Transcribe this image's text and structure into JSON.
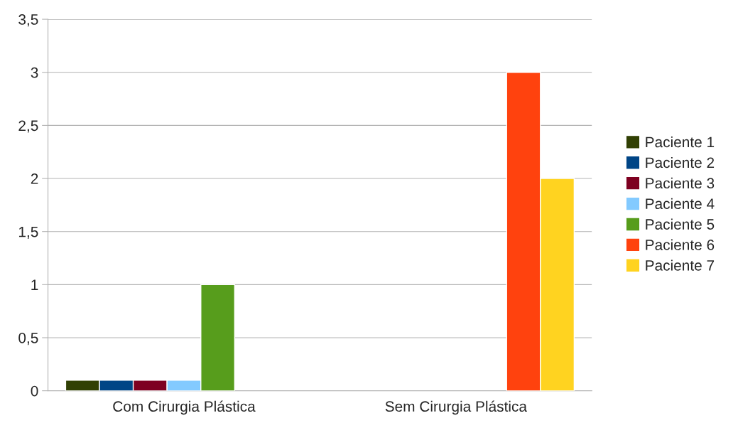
{
  "chart_data": {
    "type": "bar",
    "categories": [
      "Com Cirurgia Plástica",
      "Sem Cirurgia Plástica"
    ],
    "series": [
      {
        "name": "Paciente 1",
        "color": "#314004",
        "values": [
          0.1,
          null
        ]
      },
      {
        "name": "Paciente 2",
        "color": "#004586",
        "values": [
          0.1,
          null
        ]
      },
      {
        "name": "Paciente 3",
        "color": "#7e0021",
        "values": [
          0.1,
          null
        ]
      },
      {
        "name": "Paciente 4",
        "color": "#83caff",
        "values": [
          0.1,
          null
        ]
      },
      {
        "name": "Paciente 5",
        "color": "#579d1c",
        "values": [
          1,
          null
        ]
      },
      {
        "name": "Paciente 6",
        "color": "#ff420e",
        "values": [
          null,
          3
        ]
      },
      {
        "name": "Paciente 7",
        "color": "#ffd320",
        "values": [
          null,
          2
        ]
      }
    ],
    "ylim": [
      0,
      3.5
    ],
    "yticks": [
      0,
      {
        "value": 0.5,
        "label": "0,5"
      },
      1,
      {
        "value": 1.5,
        "label": "1,5"
      },
      2,
      {
        "value": 2.5,
        "label": "2,5"
      },
      3,
      {
        "value": 3.5,
        "label": "3,5"
      }
    ],
    "grid": "y",
    "legend": "right"
  }
}
